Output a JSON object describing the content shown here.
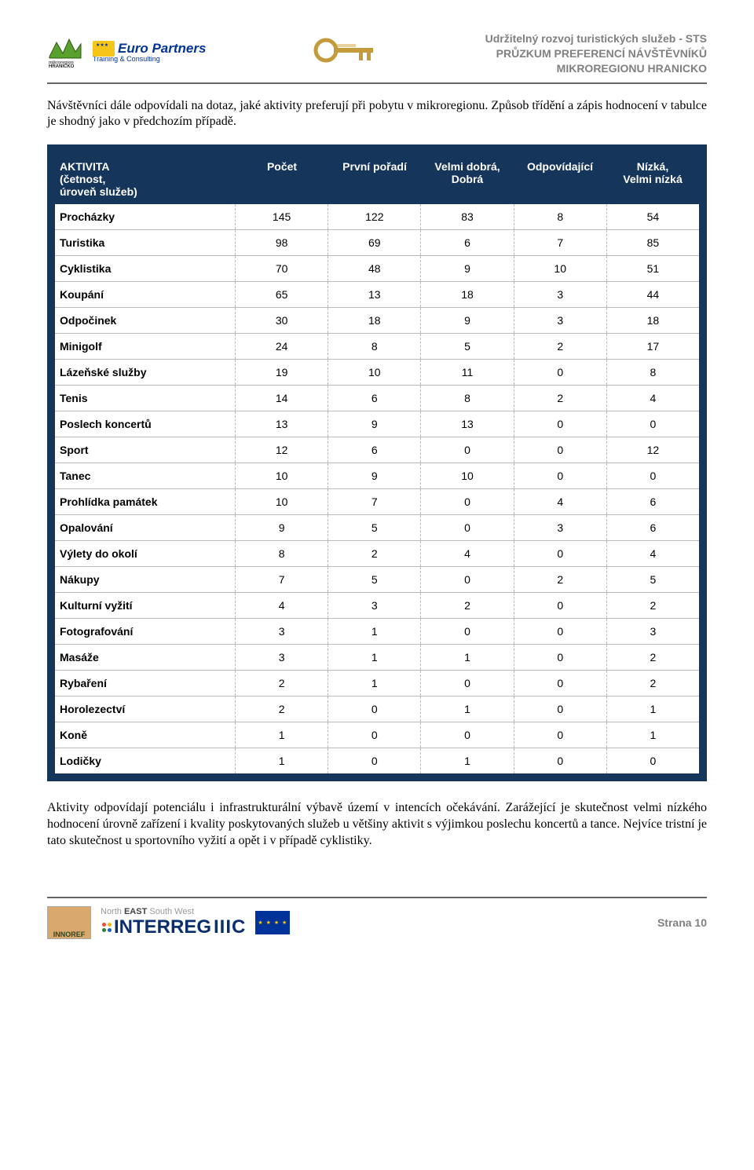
{
  "header": {
    "right_line1": "Udržitelný rozvoj turistických služeb - STS",
    "right_line2": "PRŮZKUM PREFERENCÍ NÁVŠTĚVNÍKŮ",
    "right_line3": "MIKROREGIONU HRANICKO",
    "hranicko_label": "mikroregion",
    "hranicko_label2": "HRANICKO",
    "europartners_name": "Euro Partners",
    "europartners_sub": "Training & Consulting"
  },
  "intro": "Návštěvníci dále odpovídali na dotaz, jaké aktivity preferují při pobytu v mikroregionu. Způsob třídění a zápis hodnocení v tabulce je shodný jako v předchozím případě.",
  "table": {
    "type": "table",
    "background_color": "#16355a",
    "row_border_color": "#bbbbbb",
    "header_text_color": "#ffffff",
    "body_text_color": "#000000",
    "font_size": 14,
    "col_widths": {
      "first": 230
    },
    "columns": [
      "AKTIVITA (četnost, úroveň služeb)",
      "Počet",
      "První pořadí",
      "Velmi dobrá, Dobrá",
      "Odpovídající",
      "Nízká, Velmi nízká"
    ],
    "rows": [
      [
        "Procházky",
        145,
        122,
        83,
        8,
        54
      ],
      [
        "Turistika",
        98,
        69,
        6,
        7,
        85
      ],
      [
        "Cyklistika",
        70,
        48,
        9,
        10,
        51
      ],
      [
        "Koupání",
        65,
        13,
        18,
        3,
        44
      ],
      [
        "Odpočinek",
        30,
        18,
        9,
        3,
        18
      ],
      [
        "Minigolf",
        24,
        8,
        5,
        2,
        17
      ],
      [
        "Lázeňské služby",
        19,
        10,
        11,
        0,
        8
      ],
      [
        "Tenis",
        14,
        6,
        8,
        2,
        4
      ],
      [
        "Poslech koncertů",
        13,
        9,
        13,
        0,
        0
      ],
      [
        "Sport",
        12,
        6,
        0,
        0,
        12
      ],
      [
        "Tanec",
        10,
        9,
        10,
        0,
        0
      ],
      [
        "Prohlídka památek",
        10,
        7,
        0,
        4,
        6
      ],
      [
        "Opalování",
        9,
        5,
        0,
        3,
        6
      ],
      [
        "Výlety do okolí",
        8,
        2,
        4,
        0,
        4
      ],
      [
        "Nákupy",
        7,
        5,
        0,
        2,
        5
      ],
      [
        "Kulturní vyžití",
        4,
        3,
        2,
        0,
        2
      ],
      [
        "Fotografování",
        3,
        1,
        0,
        0,
        3
      ],
      [
        "Masáže",
        3,
        1,
        1,
        0,
        2
      ],
      [
        "Rybaření",
        2,
        1,
        0,
        0,
        2
      ],
      [
        "Horolezectví",
        2,
        0,
        1,
        0,
        1
      ],
      [
        "Koně",
        1,
        0,
        0,
        0,
        1
      ],
      [
        "Lodičky",
        1,
        0,
        1,
        0,
        0
      ]
    ]
  },
  "outro": "Aktivity odpovídají potenciálu i infrastrukturální výbavě území v intencích očekávání. Zarážející je skutečnost velmi nízkého hodnocení úrovně zařízení i kvality poskytovaných služeb u většiny aktivit s výjimkou poslechu koncertů a tance. Nejvíce tristní je tato skutečnost u sportovního vyžití a opět i v případě cyklistiky.",
  "footer": {
    "innoref": "INNOREF",
    "nesw_north": "North",
    "nesw_east": "EAST",
    "nesw_sw": "South West",
    "interreg": "INTERREG",
    "iiic": "IIIC",
    "dot_colors": [
      "#f04a3e",
      "#f7b500",
      "#2e7d32",
      "#1565c0"
    ],
    "page_label": "Strana 10"
  }
}
